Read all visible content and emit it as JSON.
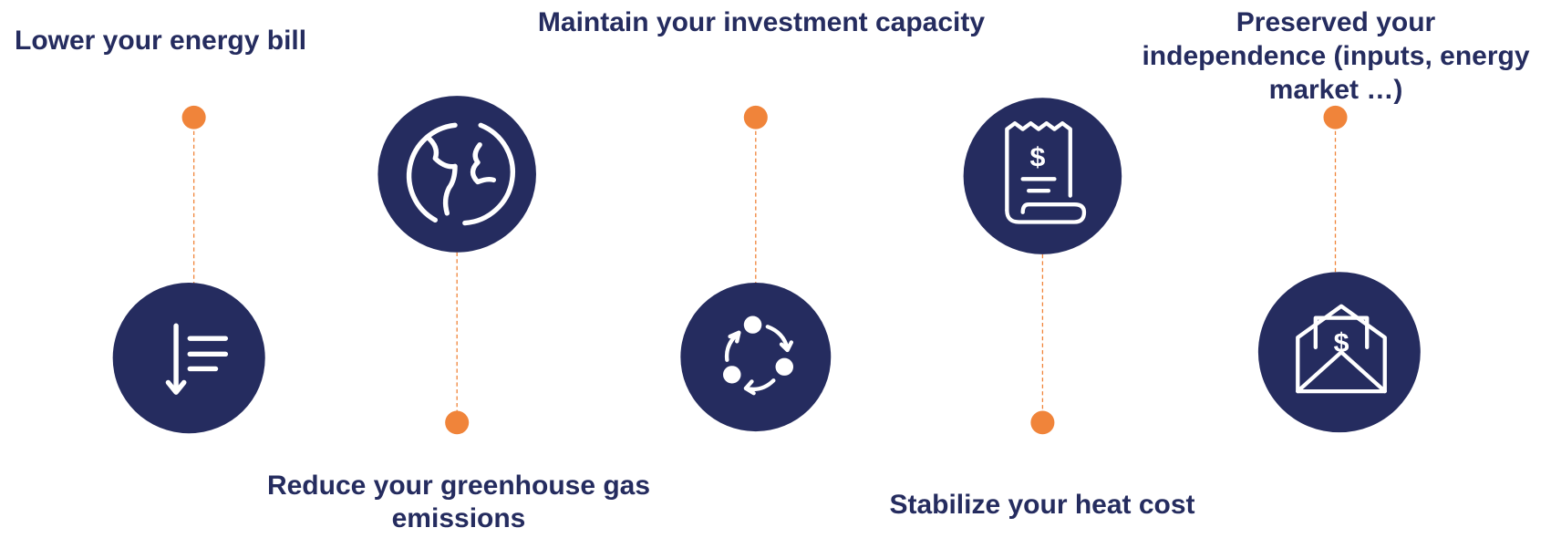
{
  "items": [
    {
      "title": [
        "Lower your energy bill"
      ]
    },
    {
      "title": [
        "Reduce your greenhouse gas",
        "emissions"
      ]
    },
    {
      "title": [
        "Maintain your investment capacity"
      ]
    },
    {
      "title": [
        "Stabilize your heat cost"
      ]
    },
    {
      "title": [
        "Preserved your",
        "independence (inputs, energy",
        "market …)"
      ]
    }
  ]
}
